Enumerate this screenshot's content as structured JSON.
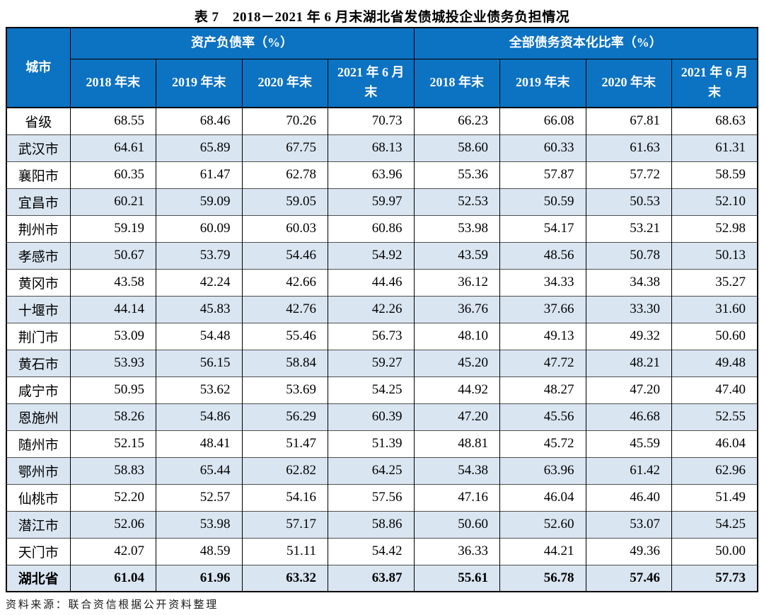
{
  "title": "表 7　2018－2021 年 6 月末湖北省发债城投企业债务负担情况",
  "table": {
    "city_header": "城市",
    "groups": [
      {
        "label": "资产负债率（%）",
        "columns": [
          "2018 年末",
          "2019 年末",
          "2020 年末",
          "2021 年 6 月末"
        ]
      },
      {
        "label": "全部债务资本化比率（%）",
        "columns": [
          "2018 年末",
          "2019 年末",
          "2020 年末",
          "2021 年 6 月末"
        ]
      }
    ],
    "rows": [
      {
        "city": "省级",
        "bold": false,
        "values": [
          "68.55",
          "68.46",
          "70.26",
          "70.73",
          "66.23",
          "66.08",
          "67.81",
          "68.63"
        ]
      },
      {
        "city": "武汉市",
        "bold": false,
        "values": [
          "64.61",
          "65.89",
          "67.75",
          "68.13",
          "58.60",
          "60.33",
          "61.63",
          "61.31"
        ]
      },
      {
        "city": "襄阳市",
        "bold": false,
        "values": [
          "60.35",
          "61.47",
          "62.78",
          "63.96",
          "55.36",
          "57.87",
          "57.72",
          "58.59"
        ]
      },
      {
        "city": "宜昌市",
        "bold": false,
        "values": [
          "60.21",
          "59.09",
          "59.05",
          "59.97",
          "52.53",
          "50.59",
          "50.53",
          "52.10"
        ]
      },
      {
        "city": "荆州市",
        "bold": false,
        "values": [
          "59.19",
          "60.09",
          "60.03",
          "60.86",
          "53.98",
          "54.17",
          "53.21",
          "52.98"
        ]
      },
      {
        "city": "孝感市",
        "bold": false,
        "values": [
          "50.67",
          "53.79",
          "54.46",
          "54.92",
          "43.59",
          "48.56",
          "50.78",
          "50.13"
        ]
      },
      {
        "city": "黄冈市",
        "bold": false,
        "values": [
          "43.58",
          "42.24",
          "42.66",
          "44.46",
          "36.12",
          "34.33",
          "34.38",
          "35.27"
        ]
      },
      {
        "city": "十堰市",
        "bold": false,
        "values": [
          "44.14",
          "45.83",
          "42.76",
          "42.26",
          "36.76",
          "37.66",
          "33.30",
          "31.60"
        ]
      },
      {
        "city": "荆门市",
        "bold": false,
        "values": [
          "53.09",
          "54.48",
          "55.46",
          "56.73",
          "48.10",
          "49.13",
          "49.32",
          "50.60"
        ]
      },
      {
        "city": "黄石市",
        "bold": false,
        "values": [
          "53.93",
          "56.15",
          "58.84",
          "59.27",
          "45.20",
          "47.72",
          "48.21",
          "49.48"
        ]
      },
      {
        "city": "咸宁市",
        "bold": false,
        "values": [
          "50.95",
          "53.62",
          "53.69",
          "54.25",
          "44.92",
          "48.27",
          "47.20",
          "47.40"
        ]
      },
      {
        "city": "恩施州",
        "bold": false,
        "values": [
          "58.26",
          "54.86",
          "56.29",
          "60.39",
          "47.20",
          "45.56",
          "46.68",
          "52.55"
        ]
      },
      {
        "city": "随州市",
        "bold": false,
        "values": [
          "52.15",
          "48.41",
          "51.47",
          "51.39",
          "48.81",
          "45.72",
          "45.59",
          "46.04"
        ]
      },
      {
        "city": "鄂州市",
        "bold": false,
        "values": [
          "58.83",
          "65.44",
          "62.82",
          "64.25",
          "54.38",
          "63.96",
          "61.42",
          "62.96"
        ]
      },
      {
        "city": "仙桃市",
        "bold": false,
        "values": [
          "52.20",
          "52.57",
          "54.16",
          "57.56",
          "47.16",
          "46.04",
          "46.40",
          "51.49"
        ]
      },
      {
        "city": "潜江市",
        "bold": false,
        "values": [
          "52.06",
          "53.98",
          "57.17",
          "58.86",
          "50.60",
          "52.60",
          "53.07",
          "54.25"
        ]
      },
      {
        "city": "天门市",
        "bold": false,
        "values": [
          "42.07",
          "48.59",
          "51.11",
          "54.42",
          "36.33",
          "44.21",
          "49.36",
          "50.00"
        ]
      },
      {
        "city": "湖北省",
        "bold": true,
        "values": [
          "61.04",
          "61.96",
          "63.32",
          "63.87",
          "55.61",
          "56.78",
          "57.46",
          "57.73"
        ]
      }
    ]
  },
  "source": "资料来源：联合资信根据公开资料整理",
  "colors": {
    "header_bg": "#0c72c2",
    "header_text": "#ffffff",
    "striped_row_bg": "#d9e5f1",
    "border": "#000000"
  }
}
